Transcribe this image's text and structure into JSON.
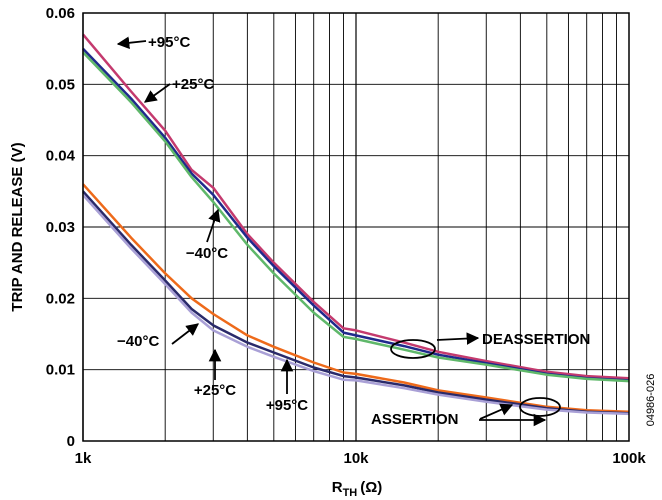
{
  "chart_data": {
    "type": "line",
    "xlabel_main": "R",
    "xlabel_sub": "TH",
    "xlabel_unit": "(Ω)",
    "ylabel": "TRIP AND RELEASE (V)",
    "x_scale": "log",
    "xlim": [
      1000,
      100000
    ],
    "ylim": [
      0,
      0.06
    ],
    "grid": true,
    "x_ticks": [
      {
        "value": 1000,
        "label": "1k"
      },
      {
        "value": 10000,
        "label": "10k"
      },
      {
        "value": 100000,
        "label": "100k"
      }
    ],
    "y_ticks": [
      {
        "value": 0,
        "label": "0"
      },
      {
        "value": 0.01,
        "label": "0.01"
      },
      {
        "value": 0.02,
        "label": "0.02"
      },
      {
        "value": 0.03,
        "label": "0.03"
      },
      {
        "value": 0.04,
        "label": "0.04"
      },
      {
        "value": 0.05,
        "label": "0.05"
      },
      {
        "value": 0.06,
        "label": "0.06"
      }
    ],
    "x": [
      1000,
      1500,
      2000,
      2500,
      3000,
      4000,
      5000,
      7000,
      9000,
      10000,
      15000,
      20000,
      30000,
      50000,
      70000,
      100000
    ],
    "series": [
      {
        "name": "+95°C",
        "group": "DEASSERTION",
        "color": "#c43a6e",
        "values": [
          0.057,
          0.049,
          0.0435,
          0.038,
          0.0355,
          0.029,
          0.025,
          0.0195,
          0.0158,
          0.0155,
          0.0138,
          0.0125,
          0.0112,
          0.0097,
          0.0091,
          0.0088
        ]
      },
      {
        "name": "+25°C",
        "group": "DEASSERTION",
        "color": "#1f2a8c",
        "values": [
          0.055,
          0.048,
          0.0425,
          0.0375,
          0.0345,
          0.0285,
          0.0245,
          0.019,
          0.0152,
          0.0148,
          0.0133,
          0.0121,
          0.0109,
          0.0094,
          0.0088,
          0.0085
        ]
      },
      {
        "name": "−40°C",
        "group": "DEASSERTION",
        "color": "#5fb86a",
        "values": [
          0.0545,
          0.0475,
          0.042,
          0.037,
          0.0335,
          0.0275,
          0.0235,
          0.018,
          0.0146,
          0.0143,
          0.0128,
          0.0117,
          0.0107,
          0.0093,
          0.0087,
          0.0084
        ]
      },
      {
        "name": "+95°C",
        "group": "ASSERTION",
        "color": "#ee6a1a",
        "values": [
          0.036,
          0.0285,
          0.0235,
          0.02,
          0.0178,
          0.0148,
          0.0132,
          0.011,
          0.0096,
          0.0094,
          0.0082,
          0.0071,
          0.0061,
          0.0048,
          0.0043,
          0.0041
        ]
      },
      {
        "name": "+25°C",
        "group": "ASSERTION",
        "color": "#2a2a6a",
        "values": [
          0.035,
          0.0275,
          0.0225,
          0.0185,
          0.0162,
          0.0138,
          0.0124,
          0.0103,
          0.0091,
          0.0089,
          0.0078,
          0.0068,
          0.0058,
          0.0046,
          0.0041,
          0.0039
        ]
      },
      {
        "name": "−40°C",
        "group": "ASSERTION",
        "color": "#a9a0d6",
        "values": [
          0.0345,
          0.027,
          0.022,
          0.018,
          0.0155,
          0.0132,
          0.0118,
          0.0098,
          0.0086,
          0.0085,
          0.0074,
          0.0065,
          0.0055,
          0.0044,
          0.004,
          0.0038
        ]
      }
    ],
    "annotations": [
      {
        "id": "deassert-95",
        "text": "+95°C"
      },
      {
        "id": "deassert-25",
        "text": "+25°C"
      },
      {
        "id": "deassert-40",
        "text": "−40°C"
      },
      {
        "id": "assert-40",
        "text": "−40°C"
      },
      {
        "id": "assert-25",
        "text": "+25°C"
      },
      {
        "id": "assert-95",
        "text": "+95°C"
      },
      {
        "id": "deassertion",
        "text": "DEASSERTION"
      },
      {
        "id": "assertion",
        "text": "ASSERTION"
      }
    ]
  },
  "figure_number": "04986-026"
}
